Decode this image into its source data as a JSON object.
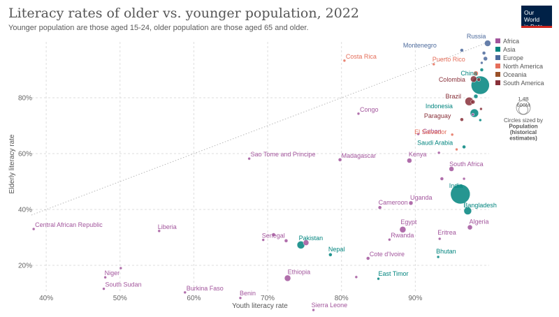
{
  "chart_data": {
    "type": "scatter",
    "title": "Literacy rates of older vs. younger population, 2022",
    "subtitle": "Younger population are those aged 15-24, older population are those aged 65 and older.",
    "xlabel": "Youth literacy rate",
    "ylabel": "Elderly literacy rate",
    "xlim": [
      38,
      100
    ],
    "ylim": [
      10,
      100
    ],
    "x_ticks": [
      40,
      50,
      60,
      70,
      80,
      90
    ],
    "x_tick_labels": [
      "40%",
      "50%",
      "60%",
      "70%",
      "80%",
      "90%"
    ],
    "y_ticks": [
      20,
      40,
      60,
      80
    ],
    "y_tick_labels": [
      "20%",
      "40%",
      "60%",
      "80%"
    ],
    "grid": true,
    "reference_line": "y = x (dotted)",
    "legend_position": "right",
    "legend": [
      {
        "name": "Africa",
        "color": "#a2559c"
      },
      {
        "name": "Asia",
        "color": "#00847e"
      },
      {
        "name": "Europe",
        "color": "#4c6a9c"
      },
      {
        "name": "North America",
        "color": "#e56e5a"
      },
      {
        "name": "Oceania",
        "color": "#9a5129"
      },
      {
        "name": "South America",
        "color": "#883039"
      }
    ],
    "size_legend": {
      "large": "1.4B",
      "small": "600M",
      "note": [
        "Circles sized by",
        "Population",
        "(historical",
        "estimates)"
      ]
    },
    "points": [
      {
        "label": "Central African Republic",
        "region": "Africa",
        "x": 38.3,
        "y": 33.0,
        "r": 2
      },
      {
        "label": "Liberia",
        "region": "Africa",
        "x": 55.3,
        "y": 32.3,
        "r": 2
      },
      {
        "label": "Niger",
        "region": "Africa",
        "x": 48.0,
        "y": 15.7,
        "r": 2
      },
      {
        "label": "",
        "region": "Africa",
        "x": 50.1,
        "y": 19.0,
        "r": 2
      },
      {
        "label": "South Sudan",
        "region": "Africa",
        "x": 47.8,
        "y": 11.6,
        "r": 2
      },
      {
        "label": "Burkina Faso",
        "region": "Africa",
        "x": 58.8,
        "y": 10.3,
        "r": 2
      },
      {
        "label": "Benin",
        "region": "Africa",
        "x": 66.3,
        "y": 8.3,
        "r": 2
      },
      {
        "label": "Sao Tome and Principe",
        "region": "Africa",
        "x": 67.5,
        "y": 58.2,
        "r": 2
      },
      {
        "label": "Senegal",
        "region": "Africa",
        "x": 69.4,
        "y": 29.1,
        "r": 2
      },
      {
        "label": "",
        "region": "Africa",
        "x": 70.8,
        "y": 31.0,
        "r": 2.5
      },
      {
        "label": "",
        "region": "Africa",
        "x": 72.5,
        "y": 28.8,
        "r": 2.5
      },
      {
        "label": "Ethiopia",
        "region": "Africa",
        "x": 72.7,
        "y": 15.4,
        "r": 4.5
      },
      {
        "label": "Sierra Leone",
        "region": "Africa",
        "x": 76.2,
        "y": 4.0,
        "r": 2
      },
      {
        "label": "",
        "region": "Africa",
        "x": 75.2,
        "y": 28.1,
        "r": 4
      },
      {
        "label": "Madagascar",
        "region": "Africa",
        "x": 79.8,
        "y": 57.8,
        "r": 2.5
      },
      {
        "label": "Congo",
        "region": "Africa",
        "x": 82.3,
        "y": 74.3,
        "r": 2
      },
      {
        "label": "",
        "region": "Africa",
        "x": 82.0,
        "y": 15.8,
        "r": 2
      },
      {
        "label": "Cote d'Ivoire",
        "region": "Africa",
        "x": 83.6,
        "y": 22.5,
        "r": 2.5
      },
      {
        "label": "Cameroon",
        "region": "Africa",
        "x": 85.2,
        "y": 40.7,
        "r": 2.5
      },
      {
        "label": "Rwanda",
        "region": "Africa",
        "x": 86.5,
        "y": 29.2,
        "r": 2
      },
      {
        "label": "Egypt",
        "region": "Africa",
        "x": 88.3,
        "y": 32.8,
        "r": 4.5
      },
      {
        "label": "Uganda",
        "region": "Africa",
        "x": 89.4,
        "y": 42.3,
        "r": 3
      },
      {
        "label": "Kenya",
        "region": "Africa",
        "x": 89.2,
        "y": 57.5,
        "r": 3.5
      },
      {
        "label": "Gabon",
        "region": "Africa",
        "x": 90.4,
        "y": 67.0,
        "r": 2
      },
      {
        "label": "",
        "region": "Africa",
        "x": 93.2,
        "y": 60.3,
        "r": 2
      },
      {
        "label": "Eritrea",
        "region": "Africa",
        "x": 93.3,
        "y": 29.5,
        "r": 2
      },
      {
        "label": "",
        "region": "Africa",
        "x": 93.6,
        "y": 51.0,
        "r": 2.5
      },
      {
        "label": "South Africa",
        "region": "Africa",
        "x": 94.9,
        "y": 54.5,
        "r": 3.5
      },
      {
        "label": "",
        "region": "Africa",
        "x": 96.6,
        "y": 51.0,
        "r": 2
      },
      {
        "label": "Algeria",
        "region": "Africa",
        "x": 97.4,
        "y": 33.6,
        "r": 3.5
      },
      {
        "label": "",
        "region": "Africa",
        "x": 97.8,
        "y": 74.0,
        "r": 2
      },
      {
        "label": "Pakistan",
        "region": "Asia",
        "x": 74.5,
        "y": 27.3,
        "r": 5.5
      },
      {
        "label": "Nepal",
        "region": "Asia",
        "x": 78.5,
        "y": 23.8,
        "r": 2.5
      },
      {
        "label": "East Timor",
        "region": "Asia",
        "x": 85.0,
        "y": 15.2,
        "r": 2
      },
      {
        "label": "Bhutan",
        "region": "Asia",
        "x": 93.1,
        "y": 23.0,
        "r": 2
      },
      {
        "label": "India",
        "region": "Asia",
        "x": 96.1,
        "y": 45.5,
        "r": 14
      },
      {
        "label": "Bangladesh",
        "region": "Asia",
        "x": 97.1,
        "y": 39.5,
        "r": 5.5
      },
      {
        "label": "Saudi Arabia",
        "region": "Asia",
        "x": 96.6,
        "y": 62.4,
        "r": 2.5
      },
      {
        "label": "Indonesia",
        "region": "Asia",
        "x": 98.0,
        "y": 74.5,
        "r": 6
      },
      {
        "label": "China",
        "region": "Asia",
        "x": 98.8,
        "y": 84.5,
        "r": 13
      },
      {
        "label": "",
        "region": "Asia",
        "x": 98.2,
        "y": 80.5,
        "r": 3
      },
      {
        "label": "",
        "region": "Asia",
        "x": 98.8,
        "y": 72.0,
        "r": 2
      },
      {
        "label": "",
        "region": "Asia",
        "x": 99.0,
        "y": 90.0,
        "r": 2.5
      },
      {
        "label": "Montenegro",
        "region": "Europe",
        "x": 96.3,
        "y": 97.0,
        "r": 2.5
      },
      {
        "label": "Russia",
        "region": "Europe",
        "x": 99.8,
        "y": 99.5,
        "r": 4.5
      },
      {
        "label": "",
        "region": "Europe",
        "x": 99.3,
        "y": 96.0,
        "r": 2.5
      },
      {
        "label": "",
        "region": "Europe",
        "x": 99.5,
        "y": 94.0,
        "r": 3
      },
      {
        "label": "",
        "region": "Europe",
        "x": 99.0,
        "y": 92.5,
        "r": 2
      },
      {
        "label": "Costa Rica",
        "region": "North America",
        "x": 80.4,
        "y": 93.3,
        "r": 2
      },
      {
        "label": "Puerto Rico",
        "region": "North America",
        "x": 92.5,
        "y": 92.0,
        "r": 2
      },
      {
        "label": "El Salvador",
        "region": "North America",
        "x": 95.0,
        "y": 66.8,
        "r": 2
      },
      {
        "label": "",
        "region": "North America",
        "x": 95.6,
        "y": 61.5,
        "r": 2
      },
      {
        "label": "",
        "region": "North America",
        "x": 98.2,
        "y": 88.7,
        "r": 3.5
      },
      {
        "label": "Colombia",
        "region": "South America",
        "x": 97.9,
        "y": 86.7,
        "r": 4.5
      },
      {
        "label": "Brazil",
        "region": "South America",
        "x": 97.3,
        "y": 78.7,
        "r": 6
      },
      {
        "label": "Paraguay",
        "region": "South America",
        "x": 96.3,
        "y": 72.2,
        "r": 2.5
      },
      {
        "label": "",
        "region": "South America",
        "x": 97.8,
        "y": 78.5,
        "r": 3
      },
      {
        "label": "",
        "region": "South America",
        "x": 98.6,
        "y": 86.5,
        "r": 2.5
      },
      {
        "label": "",
        "region": "South America",
        "x": 98.9,
        "y": 76.0,
        "r": 2
      }
    ]
  },
  "branding": {
    "logo_line1": "Our World",
    "logo_line2": "in Data"
  }
}
